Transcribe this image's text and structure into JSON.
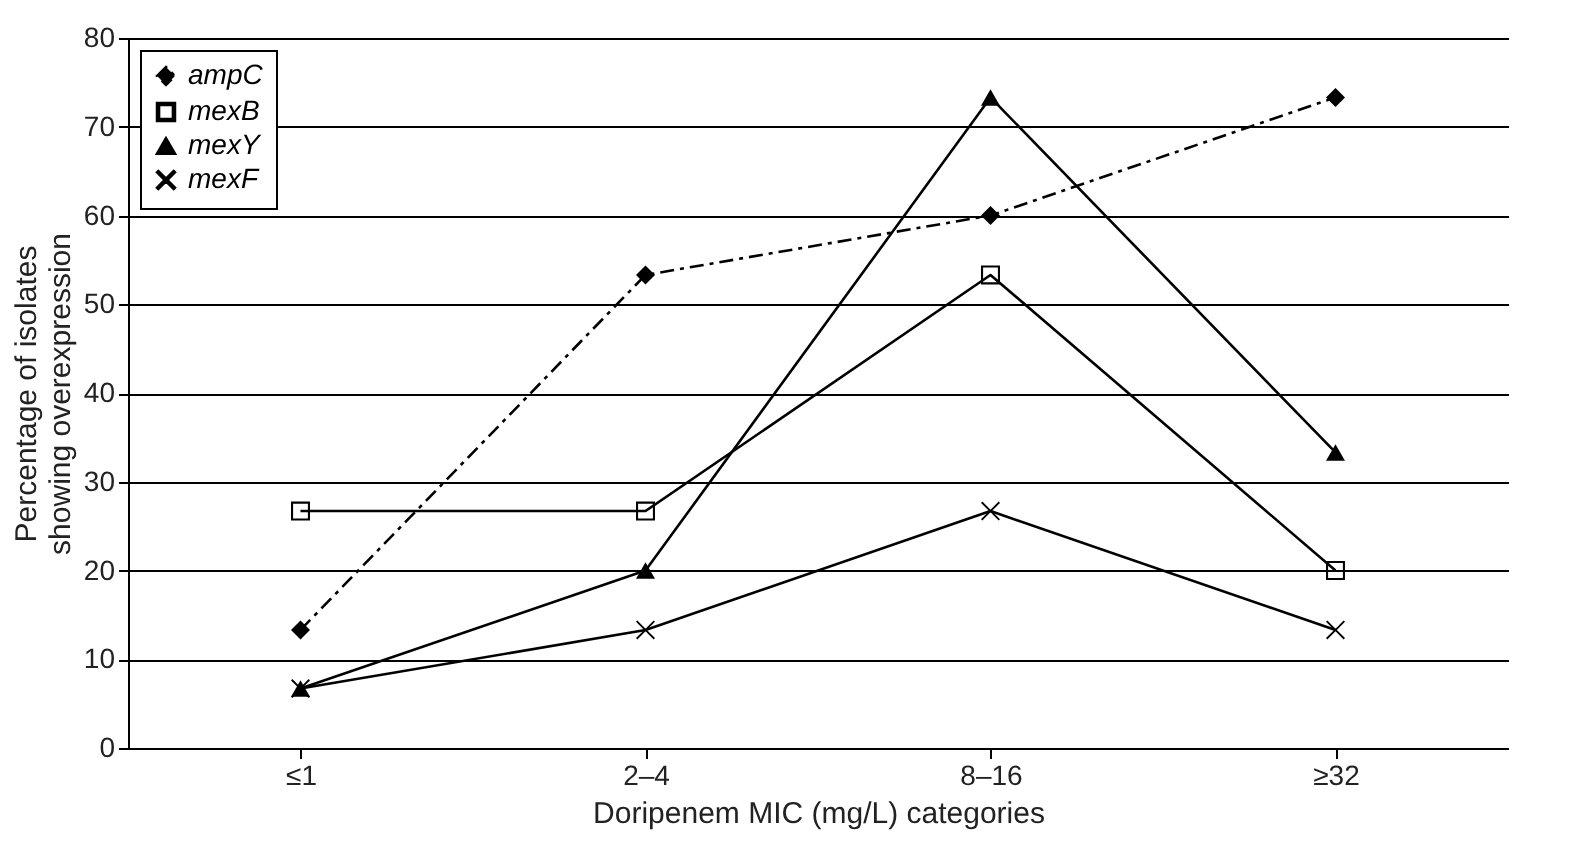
{
  "chart_data": {
    "type": "line",
    "xlabel": "Doripenem MIC (mg/L) categories",
    "ylabel": "Percentage of isolates showing overexpression",
    "categories": [
      "≤1",
      "2–4",
      "8–16",
      "≥32"
    ],
    "series": [
      {
        "name": "ampC",
        "color": "#000000",
        "marker": "diamond",
        "line_style": "dashdot",
        "values": [
          13.3,
          53.3,
          60,
          73.3
        ]
      },
      {
        "name": "mexB",
        "color": "#000000",
        "marker": "square",
        "line_style": "solid",
        "values": [
          26.7,
          26.7,
          53.3,
          20
        ]
      },
      {
        "name": "mexY",
        "color": "#000000",
        "marker": "triangle",
        "line_style": "solid",
        "values": [
          6.7,
          20,
          73.3,
          33.3
        ]
      },
      {
        "name": "mexF",
        "color": "#000000",
        "marker": "cross",
        "line_style": "solid",
        "values": [
          6.7,
          13.3,
          26.7,
          13.3
        ]
      }
    ],
    "ylim": [
      0,
      80
    ],
    "yticks": [
      0,
      10,
      20,
      30,
      40,
      50,
      60,
      70,
      80
    ],
    "grid": "y",
    "legend": "top left"
  }
}
